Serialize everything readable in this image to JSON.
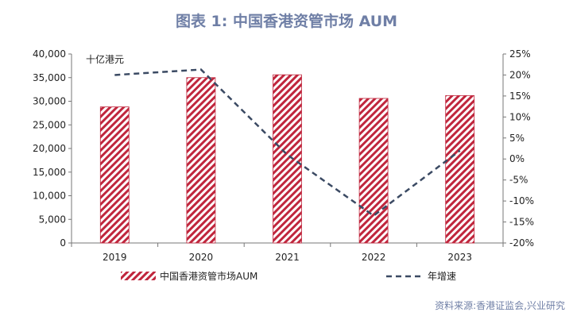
{
  "title": "图表 1:  中国香港资管市场 AUM",
  "source": "资料来源:香港证监会,兴业研究",
  "colors": {
    "bar_stripe": "#c0263d",
    "bar_border": "#c0263d",
    "line": "#3b4a63",
    "title": "#6f7fa6"
  },
  "chart_data": {
    "type": "bar",
    "categories": [
      "2019",
      "2020",
      "2021",
      "2022",
      "2023"
    ],
    "series": [
      {
        "name": "中国香港资管市场AUM",
        "type": "bar",
        "axis": "left",
        "values": [
          28800,
          35000,
          35600,
          30600,
          31200
        ]
      },
      {
        "name": "年增速",
        "type": "line",
        "axis": "right",
        "style": "dashed",
        "values": [
          20.0,
          21.3,
          1.0,
          -13.5,
          2.0
        ]
      }
    ],
    "y_left": {
      "unit_label": "十亿港元",
      "lim": [
        0,
        40000
      ],
      "ticks": [
        "0",
        "5,000",
        "10,000",
        "15,000",
        "20,000",
        "25,000",
        "30,000",
        "35,000",
        "40,000"
      ]
    },
    "y_right": {
      "lim": [
        -20,
        25
      ],
      "ticks": [
        "-20%",
        "-15%",
        "-10%",
        "-5%",
        "0%",
        "5%",
        "10%",
        "15%",
        "20%",
        "25%"
      ]
    },
    "grid": false,
    "legend": "bottom"
  }
}
